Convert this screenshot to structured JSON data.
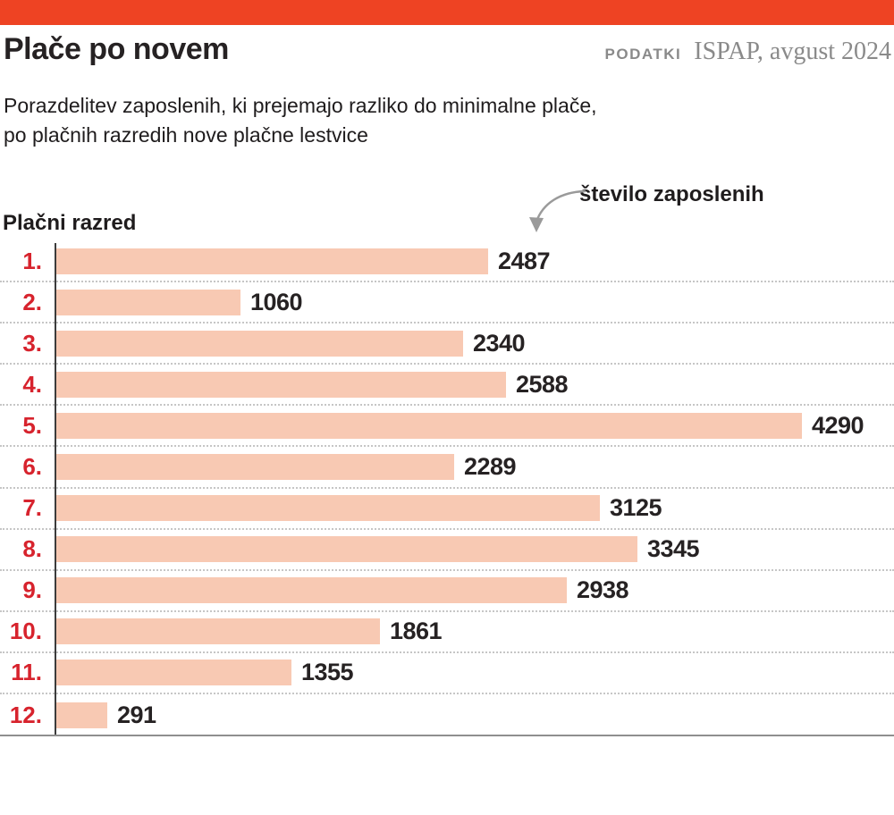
{
  "meta": {
    "accent_color": "#ee4323",
    "bar_color": "#f8c9b3",
    "category_color": "#d7232d",
    "text_color": "#262223",
    "muted_color": "#8a8a8a"
  },
  "header": {
    "title": "Plače po novem",
    "source_label": "PODATKI",
    "source_value": "ISPAP, avgust 2024"
  },
  "subtitle": {
    "line1": "Porazdelitev zaposlenih, ki prejemajo razliko do minimalne plače,",
    "line2": "po plačnih razredih nove plačne lestvice"
  },
  "chart": {
    "axis_label": "Plačni razred",
    "annotation": "število zaposlenih",
    "annotation_arrow_icon": "curved-arrow-down-left"
  },
  "chart_data": {
    "type": "bar",
    "orientation": "horizontal",
    "title": "Plače po novem",
    "subtitle": "Porazdelitev zaposlenih, ki prejemajo razliko do minimalne plače, po plačnih razredih nove plačne lestvice",
    "categories": [
      "1.",
      "2.",
      "3.",
      "4.",
      "5.",
      "6.",
      "7.",
      "8.",
      "9.",
      "10.",
      "11.",
      "12."
    ],
    "values": [
      2487,
      1060,
      2340,
      2588,
      4290,
      2289,
      3125,
      3345,
      2938,
      1861,
      1355,
      291
    ],
    "xlabel": "število zaposlenih",
    "ylabel": "Plačni razred",
    "xlim": [
      0,
      4466
    ],
    "grid": "dotted-row-separators",
    "legend": "none",
    "value_labels": "at-bar-end",
    "source": "ISPAP, avgust 2024"
  }
}
